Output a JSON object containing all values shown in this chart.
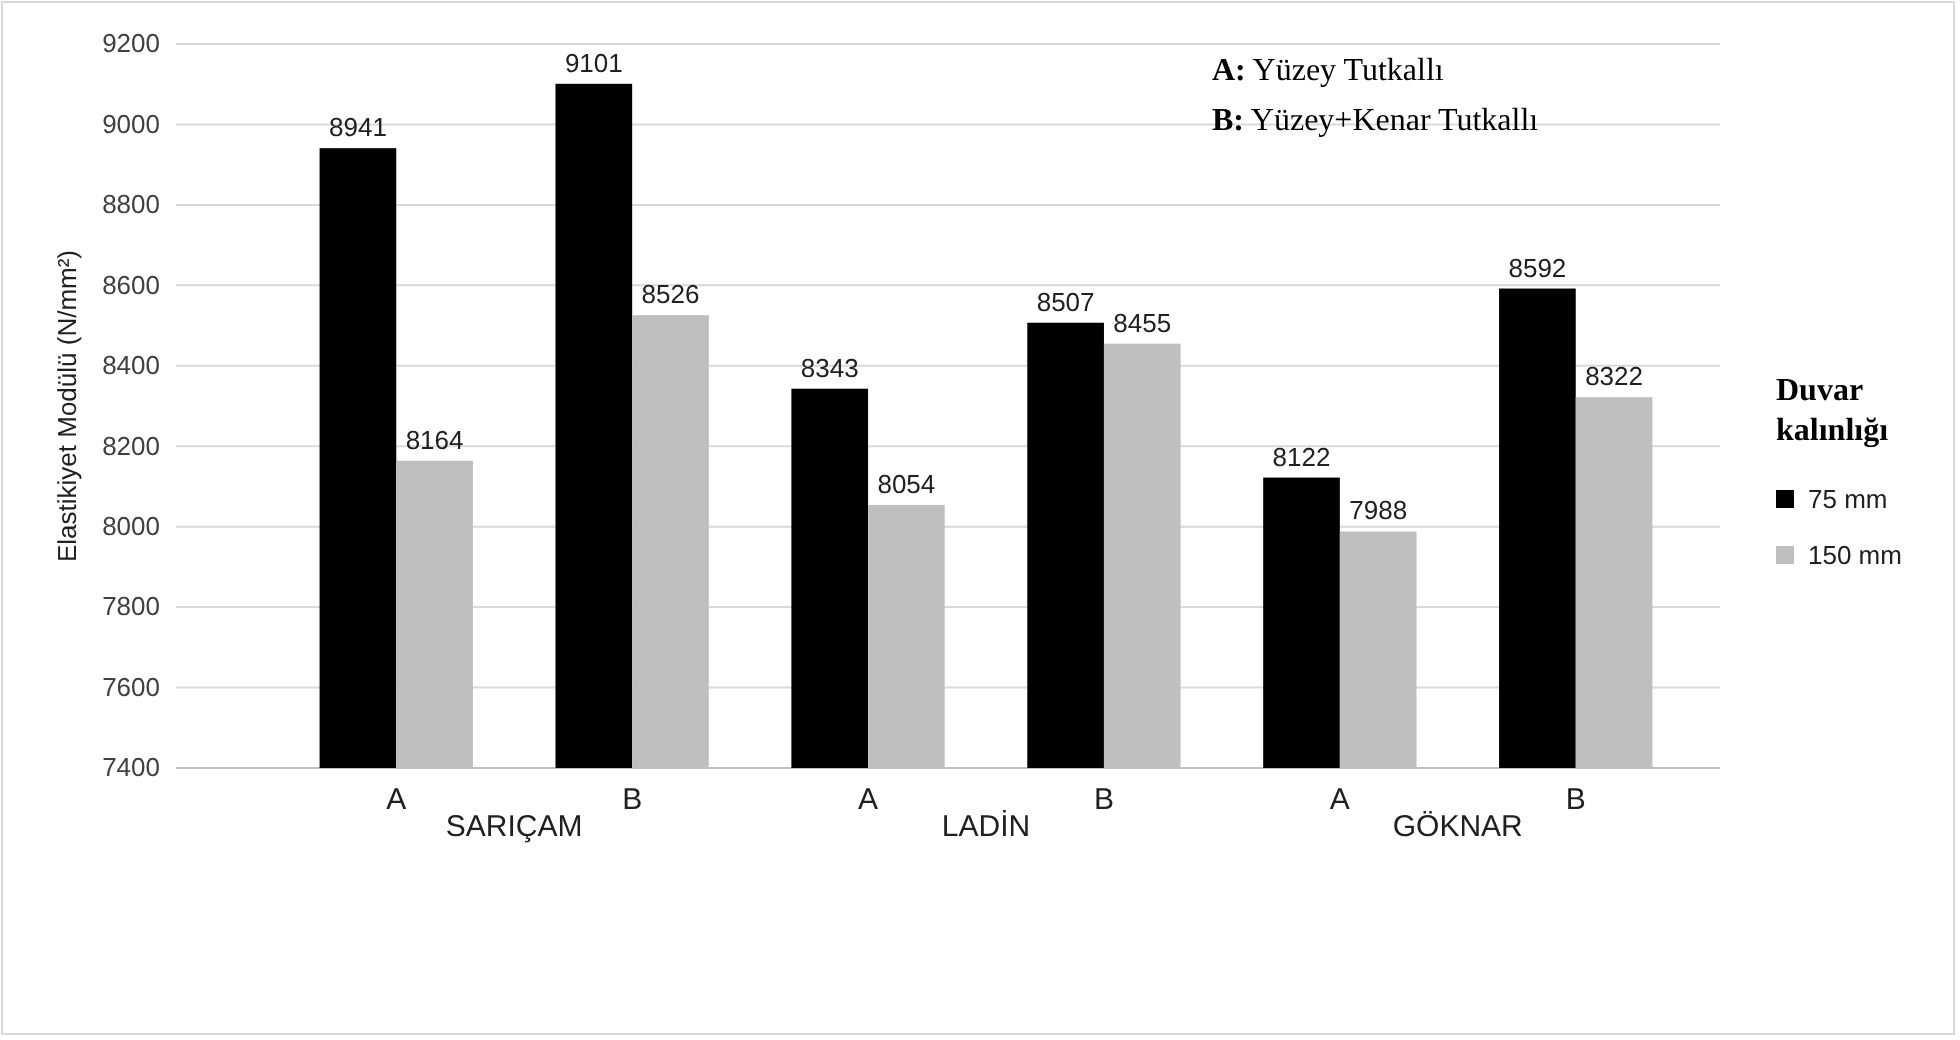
{
  "chart_data": {
    "type": "bar",
    "ylabel": "Elastikiyet Modülü (N/mm²)",
    "legend_title": "Duvar kalınlığı",
    "categories": [
      "A",
      "B",
      "A",
      "B",
      "A",
      "B"
    ],
    "series": [
      {
        "name": "75 mm",
        "color": "#000000",
        "values": [
          8941,
          9101,
          8343,
          8507,
          8122,
          8592
        ]
      },
      {
        "name": "150 mm",
        "color": "#bfbfbf",
        "values": [
          8164,
          8526,
          8054,
          8455,
          7988,
          8322
        ]
      }
    ],
    "ylim": [
      7400,
      9200
    ],
    "yticks": [
      7400,
      7600,
      7800,
      8000,
      8200,
      8400,
      8600,
      8800,
      9000,
      9200
    ],
    "grid": "y",
    "legend": "right",
    "data_labels": true,
    "annotations": [
      "SARIÇAM",
      "LADİN",
      "GÖKNAR",
      "A: Yüzey Tutkallı",
      "B: Yüzey+Kenar Tutkallı"
    ]
  }
}
